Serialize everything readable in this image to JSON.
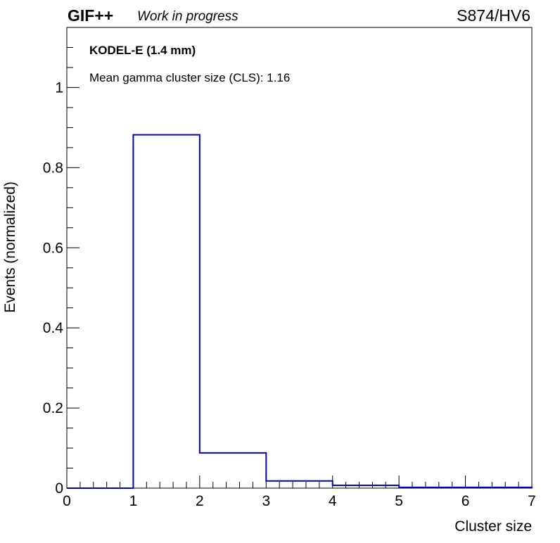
{
  "header": {
    "experiment": "GIF++",
    "status": "Work in progress",
    "run_label": "S874/HV6"
  },
  "annotations": {
    "detector": "KODEL-E (1.4 mm)",
    "mean_cls": "Mean gamma cluster size (CLS): 1.16"
  },
  "chart_data": {
    "type": "bar",
    "histogram": true,
    "xlabel": "Cluster size",
    "ylabel": "Events (normalized)",
    "xlim": [
      0,
      7
    ],
    "ylim": [
      0,
      1.15
    ],
    "bin_edges": [
      0,
      1,
      2,
      3,
      4,
      5,
      6,
      7
    ],
    "values": [
      0.0,
      0.882,
      0.088,
      0.018,
      0.007,
      0.002,
      0.002
    ],
    "x_ticks": [
      "0",
      "1",
      "2",
      "3",
      "4",
      "5",
      "6",
      "7"
    ],
    "y_ticks": [
      {
        "value": 0,
        "label": "0"
      },
      {
        "value": 0.2,
        "label": "0.2"
      },
      {
        "value": 0.4,
        "label": "0.4"
      },
      {
        "value": 0.6,
        "label": "0.6"
      },
      {
        "value": 0.8,
        "label": "0.8"
      },
      {
        "value": 1,
        "label": "1"
      }
    ],
    "grid": false,
    "line_color": "#0000cc"
  }
}
